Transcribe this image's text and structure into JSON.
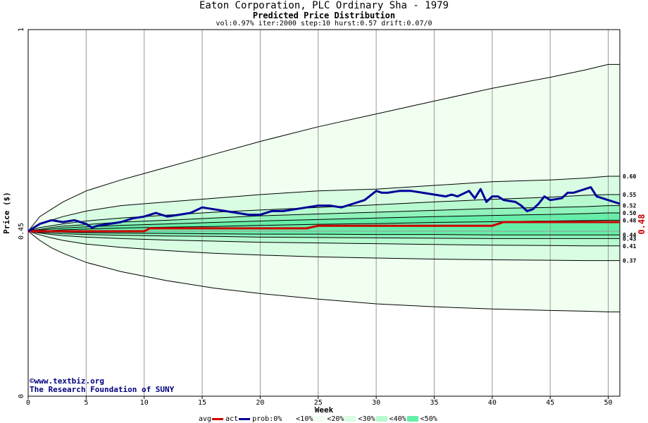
{
  "title": "Eaton Corporation, PLC Ordinary Sha - 1979",
  "subtitle": "Predicted Price Distribution",
  "params": "vol:0.97% iter:2000 step:10 hurst:0.57 drift:0.07/0",
  "credit": {
    "site": "www.textbiz.org",
    "org": "The Research Foundation of SUNY"
  },
  "legend": {
    "avg": "avg",
    "act": "act",
    "prob": "prob:0%",
    "b10": "<10%",
    "b20": "<20%",
    "b30": "<30%",
    "b40": "<40%",
    "b50": "<50%"
  },
  "colors": {
    "avg": "#cc0000",
    "act": "#000099",
    "b0": "#ffffff",
    "b10": "#f0fff0",
    "b20": "#d8fde3",
    "b30": "#b8fad0",
    "b40": "#8ff3bb",
    "b50": "#66eea8"
  },
  "chart_data": {
    "type": "line",
    "xlabel": "Week",
    "ylabel": "Price ($)",
    "xlim": [
      0,
      51
    ],
    "ylim": [
      0,
      1
    ],
    "x_ticks": [
      0,
      5,
      10,
      15,
      20,
      25,
      30,
      35,
      40,
      45,
      50
    ],
    "y_ticks": [
      0,
      0.45,
      1
    ],
    "y_tick_labels": [
      "0",
      "0.45",
      "1"
    ],
    "percentile_weeks": [
      0,
      1,
      2,
      3,
      5,
      8,
      12,
      16,
      20,
      25,
      30,
      35,
      40,
      45,
      48,
      50,
      51
    ],
    "percentile_bands": [
      {
        "end": 0.6,
        "values": [
          0.45,
          0.47,
          0.48,
          0.49,
          0.505,
          0.52,
          0.53,
          0.54,
          0.55,
          0.56,
          0.565,
          0.575,
          0.585,
          0.59,
          0.595,
          0.6,
          0.6
        ]
      },
      {
        "end": 0.55,
        "values": [
          0.45,
          0.46,
          0.465,
          0.47,
          0.478,
          0.486,
          0.494,
          0.502,
          0.508,
          0.515,
          0.522,
          0.53,
          0.537,
          0.543,
          0.548,
          0.55,
          0.55
        ]
      },
      {
        "end": 0.52,
        "values": [
          0.45,
          0.455,
          0.46,
          0.464,
          0.468,
          0.475,
          0.48,
          0.486,
          0.492,
          0.497,
          0.502,
          0.507,
          0.512,
          0.515,
          0.517,
          0.52,
          0.52
        ]
      },
      {
        "end": 0.5,
        "values": [
          0.45,
          0.453,
          0.456,
          0.459,
          0.462,
          0.466,
          0.47,
          0.474,
          0.478,
          0.482,
          0.486,
          0.49,
          0.493,
          0.496,
          0.498,
          0.5,
          0.5
        ]
      },
      {
        "end": 0.48,
        "values": [
          0.45,
          0.451,
          0.452,
          0.454,
          0.456,
          0.459,
          0.461,
          0.463,
          0.466,
          0.469,
          0.471,
          0.474,
          0.476,
          0.478,
          0.479,
          0.48,
          0.48
        ]
      },
      {
        "end": 0.44,
        "values": [
          0.45,
          0.449,
          0.448,
          0.447,
          0.446,
          0.445,
          0.444,
          0.443,
          0.442,
          0.442,
          0.441,
          0.441,
          0.44,
          0.44,
          0.44,
          0.44,
          0.44
        ]
      },
      {
        "end": 0.43,
        "values": [
          0.45,
          0.447,
          0.445,
          0.443,
          0.441,
          0.439,
          0.437,
          0.436,
          0.434,
          0.433,
          0.432,
          0.431,
          0.43,
          0.43,
          0.43,
          0.43,
          0.43
        ]
      },
      {
        "end": 0.41,
        "values": [
          0.45,
          0.445,
          0.441,
          0.438,
          0.434,
          0.43,
          0.426,
          0.423,
          0.42,
          0.418,
          0.416,
          0.414,
          0.412,
          0.411,
          0.41,
          0.41,
          0.41
        ]
      },
      {
        "end": 0.37,
        "values": [
          0.45,
          0.44,
          0.432,
          0.425,
          0.415,
          0.406,
          0.397,
          0.39,
          0.385,
          0.38,
          0.377,
          0.374,
          0.372,
          0.371,
          0.37,
          0.37,
          0.37
        ]
      },
      {
        "end": 0.23,
        "values": [
          0.45,
          0.425,
          0.405,
          0.39,
          0.365,
          0.34,
          0.315,
          0.295,
          0.28,
          0.265,
          0.252,
          0.244,
          0.238,
          0.234,
          0.232,
          0.23,
          0.23
        ]
      }
    ],
    "upper_envelope": {
      "x": [
        0,
        1,
        2,
        3,
        5,
        8,
        12,
        16,
        20,
        25,
        30,
        35,
        40,
        45,
        48,
        50,
        51
      ],
      "y": [
        0.45,
        0.49,
        0.51,
        0.53,
        0.56,
        0.59,
        0.625,
        0.66,
        0.695,
        0.735,
        0.77,
        0.805,
        0.84,
        0.87,
        0.89,
        0.905,
        0.905
      ]
    },
    "end_labels": [
      {
        "label": "0.60",
        "value": 0.6
      },
      {
        "label": "0.55",
        "value": 0.55
      },
      {
        "label": "0.52",
        "value": 0.52
      },
      {
        "label": "0.50",
        "value": 0.5
      },
      {
        "label": "0.48",
        "value": 0.48
      },
      {
        "label": "0.44",
        "value": 0.44
      },
      {
        "label": "0.43",
        "value": 0.43
      },
      {
        "label": "0.41",
        "value": 0.41
      },
      {
        "label": "0.37",
        "value": 0.37
      }
    ],
    "current_price_label": "0.48",
    "series": [
      {
        "name": "avg",
        "x": [
          0,
          0.1,
          1.5,
          10,
          10.5,
          24,
          25,
          40,
          41,
          51
        ],
        "y": [
          0.45,
          0.45,
          0.45,
          0.45,
          0.458,
          0.458,
          0.465,
          0.465,
          0.475,
          0.475
        ]
      },
      {
        "name": "act",
        "x": [
          0,
          0.5,
          1,
          2,
          3,
          4,
          5,
          5.5,
          6,
          7,
          8,
          9,
          10,
          11,
          12,
          13,
          14,
          15,
          16,
          17,
          18,
          19,
          20,
          21,
          22,
          23,
          24,
          25,
          26,
          27,
          28,
          29,
          30,
          30.5,
          31,
          32,
          33,
          34,
          35,
          36,
          36.5,
          37,
          38,
          38.5,
          39,
          39.5,
          40,
          40.5,
          41,
          42,
          42.5,
          43,
          43.5,
          44,
          44.5,
          45,
          46,
          46.5,
          47,
          48,
          48.5,
          49,
          49.5,
          50,
          51
        ],
        "y": [
          0.45,
          0.46,
          0.47,
          0.48,
          0.475,
          0.48,
          0.47,
          0.46,
          0.465,
          0.47,
          0.475,
          0.485,
          0.49,
          0.5,
          0.49,
          0.495,
          0.5,
          0.515,
          0.51,
          0.505,
          0.5,
          0.495,
          0.495,
          0.505,
          0.505,
          0.51,
          0.515,
          0.52,
          0.52,
          0.515,
          0.525,
          0.535,
          0.56,
          0.555,
          0.555,
          0.56,
          0.56,
          0.555,
          0.55,
          0.545,
          0.55,
          0.545,
          0.56,
          0.54,
          0.565,
          0.53,
          0.545,
          0.545,
          0.535,
          0.53,
          0.52,
          0.505,
          0.51,
          0.525,
          0.545,
          0.535,
          0.54,
          0.555,
          0.555,
          0.565,
          0.57,
          0.545,
          0.54,
          0.535,
          0.525
        ]
      }
    ]
  }
}
